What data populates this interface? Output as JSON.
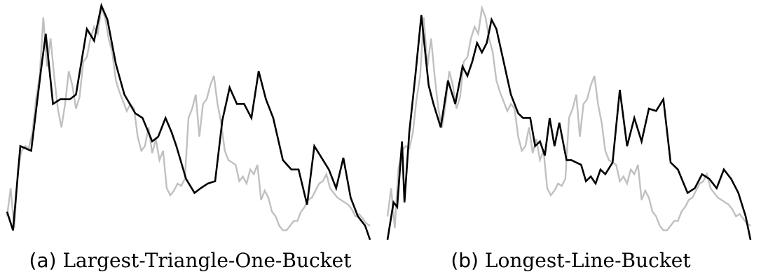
{
  "chart_data": [
    {
      "type": "line",
      "caption_tag": "(a)",
      "caption_name": "Largest-Triangle-One-Bucket",
      "ylim": [
        0,
        100
      ],
      "grid": false,
      "colors": {
        "original": "#c0c0c0",
        "downsampled": "#000000"
      },
      "series": [
        {
          "role": "original",
          "x": [
            0,
            3,
            6,
            9,
            12,
            15,
            18,
            21,
            24,
            27,
            30,
            33,
            36,
            39,
            42,
            45,
            48,
            51,
            54,
            57,
            60,
            63,
            66,
            69,
            72,
            75,
            78,
            81,
            84,
            87,
            90,
            93,
            96,
            99,
            102,
            105,
            108,
            111,
            114,
            117,
            120,
            123,
            126,
            129,
            132,
            135,
            138,
            141,
            144,
            147,
            150,
            153,
            156,
            159,
            162,
            165,
            168,
            171,
            174,
            177,
            180,
            183,
            186,
            189,
            192,
            195,
            198,
            201,
            204,
            207,
            210,
            213,
            216,
            219,
            222,
            225,
            228,
            231,
            234,
            237,
            240,
            243,
            246,
            249,
            252,
            255,
            258,
            261,
            264,
            267,
            270,
            273,
            276,
            279,
            282,
            285,
            288,
            291,
            294,
            297,
            300
          ],
          "y": [
            10,
            22,
            5,
            30,
            38,
            40,
            39,
            46,
            60,
            70,
            95,
            74,
            86,
            70,
            56,
            48,
            58,
            72,
            66,
            56,
            61,
            76,
            78,
            86,
            91,
            88,
            99,
            95,
            86,
            80,
            68,
            63,
            59,
            55,
            58,
            56,
            44,
            38,
            40,
            48,
            37,
            43,
            34,
            38,
            22,
            19,
            21,
            24,
            23,
            26,
            52,
            56,
            62,
            44,
            58,
            60,
            66,
            70,
            58,
            50,
            38,
            34,
            33,
            32,
            25,
            27,
            24,
            30,
            28,
            32,
            17,
            21,
            18,
            12,
            10,
            6,
            4,
            4,
            6,
            8,
            8,
            12,
            14,
            17,
            18,
            21,
            24,
            25,
            28,
            22,
            20,
            18,
            17,
            16,
            15,
            13,
            10,
            11,
            9,
            7,
            6
          ],
          "values_note": ""
        },
        {
          "role": "downsampled",
          "x": [
            0,
            5,
            11,
            20,
            28,
            32,
            38,
            44,
            52,
            57,
            66,
            72,
            78,
            83,
            90,
            97,
            106,
            112,
            120,
            125,
            131,
            136,
            140,
            148,
            155,
            160,
            166,
            172,
            178,
            184,
            190,
            196,
            202,
            208,
            214,
            220,
            228,
            235,
            241,
            248,
            254,
            260,
            266,
            272,
            278,
            284,
            290,
            296,
            300
          ],
          "y": [
            12,
            4,
            40,
            38,
            72,
            88,
            58,
            60,
            60,
            62,
            90,
            85,
            100,
            94,
            75,
            62,
            54,
            52,
            42,
            44,
            52,
            46,
            40,
            26,
            20,
            22,
            24,
            25,
            51,
            65,
            58,
            58,
            52,
            72,
            60,
            52,
            34,
            30,
            30,
            15,
            40,
            35,
            30,
            22,
            35,
            18,
            10,
            6,
            0
          ],
          "values_note": ""
        }
      ]
    },
    {
      "type": "line",
      "caption_tag": "(b)",
      "caption_name": "Longest-Line-Bucket",
      "ylim": [
        0,
        100
      ],
      "grid": false,
      "colors": {
        "original": "#c0c0c0",
        "downsampled": "#000000"
      },
      "series": [
        {
          "role": "original",
          "x": [
            0,
            3,
            6,
            9,
            12,
            15,
            18,
            21,
            24,
            27,
            30,
            33,
            36,
            39,
            42,
            45,
            48,
            51,
            54,
            57,
            60,
            63,
            66,
            69,
            72,
            75,
            78,
            81,
            84,
            87,
            90,
            93,
            96,
            99,
            102,
            105,
            108,
            111,
            114,
            117,
            120,
            123,
            126,
            129,
            132,
            135,
            138,
            141,
            144,
            147,
            150,
            153,
            156,
            159,
            162,
            165,
            168,
            171,
            174,
            177,
            180,
            183,
            186,
            189,
            192,
            195,
            198,
            201,
            204,
            207,
            210,
            213,
            216,
            219,
            222,
            225,
            228,
            231,
            234,
            237,
            240,
            243,
            246,
            249,
            252,
            255,
            258,
            261,
            264,
            267,
            270,
            273,
            276,
            279,
            282,
            285,
            288,
            291,
            294,
            297,
            300
          ],
          "y": [
            10,
            22,
            5,
            30,
            38,
            40,
            39,
            46,
            60,
            70,
            95,
            74,
            86,
            70,
            56,
            48,
            58,
            72,
            66,
            56,
            61,
            76,
            78,
            86,
            91,
            88,
            99,
            95,
            86,
            80,
            68,
            63,
            59,
            55,
            58,
            56,
            44,
            38,
            40,
            48,
            37,
            43,
            34,
            38,
            22,
            19,
            21,
            24,
            23,
            26,
            52,
            56,
            62,
            44,
            58,
            60,
            66,
            70,
            58,
            50,
            38,
            34,
            33,
            32,
            25,
            27,
            24,
            30,
            28,
            32,
            17,
            21,
            18,
            12,
            10,
            6,
            4,
            4,
            6,
            8,
            8,
            12,
            14,
            17,
            18,
            21,
            24,
            25,
            28,
            22,
            20,
            18,
            17,
            16,
            15,
            13,
            10,
            11,
            9,
            7,
            6
          ],
          "values_note": ""
        },
        {
          "role": "downsampled",
          "x": [
            0,
            5,
            8,
            12,
            14,
            18,
            23,
            28,
            34,
            38,
            44,
            50,
            56,
            62,
            66,
            70,
            74,
            78,
            82,
            86,
            90,
            96,
            102,
            108,
            112,
            118,
            122,
            126,
            130,
            134,
            138,
            142,
            148,
            152,
            156,
            160,
            164,
            168,
            172,
            176,
            180,
            186,
            192,
            198,
            204,
            210,
            216,
            222,
            228,
            234,
            240,
            248,
            254,
            260,
            266,
            272,
            278,
            284,
            290,
            296,
            300
          ],
          "y": [
            0,
            16,
            14,
            42,
            16,
            46,
            70,
            96,
            66,
            58,
            48,
            68,
            58,
            74,
            70,
            76,
            84,
            80,
            84,
            94,
            90,
            76,
            62,
            54,
            52,
            52,
            40,
            42,
            36,
            52,
            40,
            50,
            34,
            34,
            33,
            32,
            25,
            27,
            24,
            30,
            28,
            33,
            64,
            40,
            52,
            42,
            56,
            55,
            60,
            33,
            30,
            20,
            22,
            28,
            26,
            22,
            30,
            26,
            20,
            10,
            0
          ]
        }
      ]
    }
  ]
}
